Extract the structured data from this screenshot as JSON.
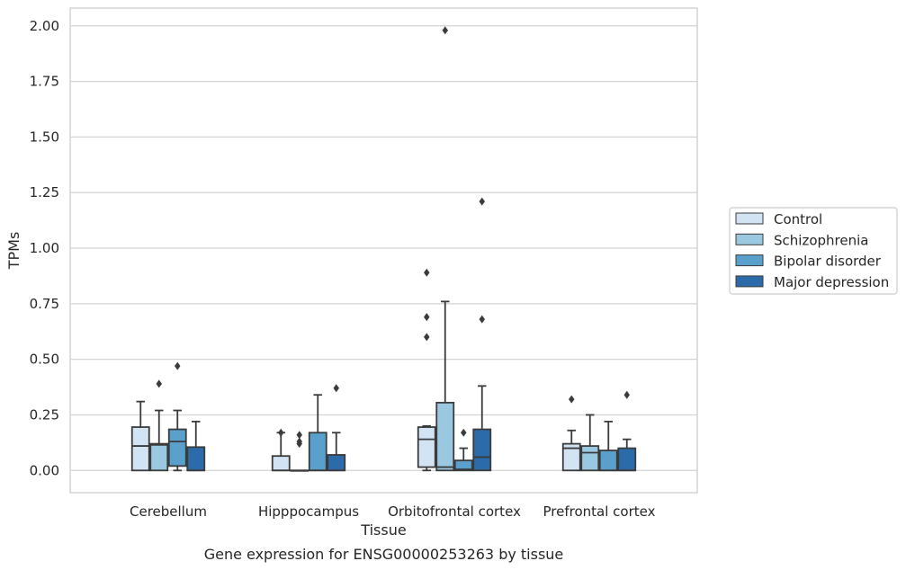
{
  "chart_data": {
    "type": "box",
    "title": "",
    "caption": "Gene expression for ENSG00000253263 by tissue",
    "xlabel": "Tissue",
    "ylabel": "TPMs",
    "ylim": [
      -0.1,
      2.08
    ],
    "yticks": [
      "0.00",
      "0.25",
      "0.50",
      "0.75",
      "1.00",
      "1.25",
      "1.50",
      "1.75",
      "2.00"
    ],
    "ytick_values": [
      0,
      0.25,
      0.5,
      0.75,
      1.0,
      1.25,
      1.5,
      1.75,
      2.0
    ],
    "grid": true,
    "legend_position": "right",
    "categories": [
      "Cerebellum",
      "Hipppocampus",
      "Orbitofrontal cortex",
      "Prefrontal cortex"
    ],
    "series": [
      {
        "name": "Control",
        "color": "#d2e3f3",
        "boxes": [
          {
            "whislo": 0,
            "q1": 0,
            "med": 0.11,
            "q3": 0.195,
            "whishi": 0.31,
            "fliers": []
          },
          {
            "whislo": 0,
            "q1": 0,
            "med": 0,
            "q3": 0.065,
            "whishi": 0.17,
            "fliers": [
              0.17
            ]
          },
          {
            "whislo": 0,
            "q1": 0.015,
            "med": 0.14,
            "q3": 0.195,
            "whishi": 0.2,
            "fliers": [
              0.6,
              0.69,
              0.89
            ]
          },
          {
            "whislo": 0,
            "q1": 0,
            "med": 0.1,
            "q3": 0.12,
            "whishi": 0.18,
            "fliers": [
              0.32
            ]
          }
        ]
      },
      {
        "name": "Schizophrenia",
        "color": "#9ac8e0",
        "boxes": [
          {
            "whislo": 0,
            "q1": 0,
            "med": 0.115,
            "q3": 0.12,
            "whishi": 0.27,
            "fliers": [
              0.39
            ]
          },
          {
            "whislo": 0,
            "q1": 0,
            "med": 0,
            "q3": 0,
            "whishi": 0,
            "fliers": [
              0.12,
              0.13,
              0.16
            ]
          },
          {
            "whislo": 0,
            "q1": 0,
            "med": 0.015,
            "q3": 0.305,
            "whishi": 0.76,
            "fliers": [
              1.98
            ]
          },
          {
            "whislo": 0,
            "q1": 0,
            "med": 0.08,
            "q3": 0.11,
            "whishi": 0.25,
            "fliers": []
          }
        ]
      },
      {
        "name": "Bipolar disorder",
        "color": "#5aa0cd",
        "boxes": [
          {
            "whislo": 0,
            "q1": 0.02,
            "med": 0.13,
            "q3": 0.185,
            "whishi": 0.27,
            "fliers": [
              0.47
            ]
          },
          {
            "whislo": 0,
            "q1": 0,
            "med": 0,
            "q3": 0.17,
            "whishi": 0.34,
            "fliers": []
          },
          {
            "whislo": 0,
            "q1": 0,
            "med": 0.005,
            "q3": 0.045,
            "whishi": 0.1,
            "fliers": [
              0.17
            ]
          },
          {
            "whislo": 0,
            "q1": 0,
            "med": 0,
            "q3": 0.09,
            "whishi": 0.22,
            "fliers": []
          }
        ]
      },
      {
        "name": "Major depression",
        "color": "#2b6ba9",
        "boxes": [
          {
            "whislo": 0,
            "q1": 0,
            "med": 0,
            "q3": 0.105,
            "whishi": 0.22,
            "fliers": []
          },
          {
            "whislo": 0,
            "q1": 0,
            "med": 0,
            "q3": 0.07,
            "whishi": 0.17,
            "fliers": [
              0.37
            ]
          },
          {
            "whislo": 0,
            "q1": 0,
            "med": 0.06,
            "q3": 0.185,
            "whishi": 0.38,
            "fliers": [
              0.68,
              1.21
            ]
          },
          {
            "whislo": 0,
            "q1": 0,
            "med": 0,
            "q3": 0.1,
            "whishi": 0.14,
            "fliers": [
              0.34
            ]
          }
        ]
      }
    ]
  }
}
